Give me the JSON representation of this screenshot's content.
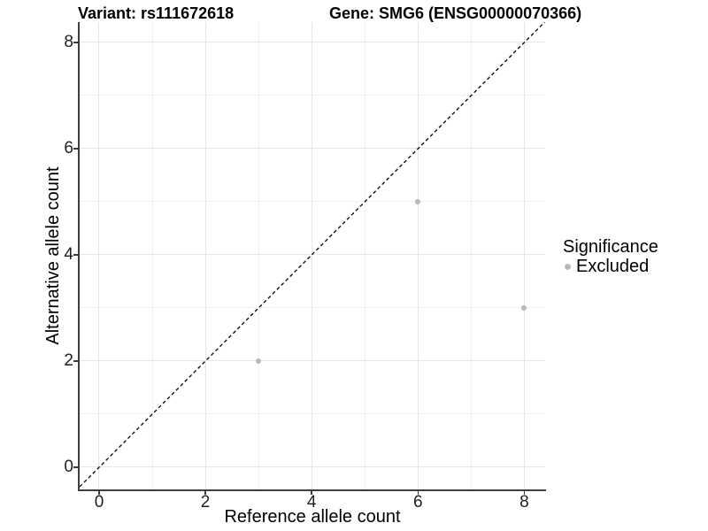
{
  "titles": {
    "variant": "Variant: rs111672618",
    "gene": "Gene: SMG6 (ENSG00000070366)"
  },
  "legend": {
    "title": "Significance",
    "items": [
      {
        "label": "Excluded",
        "color": "#b9b9b9"
      }
    ]
  },
  "chart_data": {
    "type": "scatter",
    "title": "Variant: rs111672618 | Gene: SMG6 (ENSG00000070366)",
    "xlabel": "Reference allele count",
    "ylabel": "Alternative allele count",
    "xlim": [
      -0.3663,
      8.3928
    ],
    "ylim": [
      -0.4167,
      8.3833
    ],
    "x_major_ticks": [
      0,
      2,
      4,
      6,
      8
    ],
    "x_minor_gridlines": [
      1,
      3,
      5,
      7
    ],
    "y_major_ticks": [
      0,
      2,
      4,
      6,
      8
    ],
    "y_minor_gridlines": [
      1,
      3,
      5,
      7
    ],
    "grid": "on",
    "legend_position": "right",
    "series": [
      {
        "name": "Excluded",
        "color": "#b9b9b9",
        "marker": "circle",
        "points": [
          [
            3,
            2
          ],
          [
            6,
            5
          ],
          [
            8,
            3
          ]
        ]
      }
    ],
    "identity_line": {
      "equation": "y = x",
      "style": "dashed",
      "color": "#000000"
    }
  },
  "colors": {
    "point": "#b9b9b9",
    "grid_major": "#e6e6e6",
    "grid_minor": "#f1f1f1",
    "axis_line": "#3f3f3f",
    "dashed_line": "#000000",
    "background": "#ffffff"
  }
}
